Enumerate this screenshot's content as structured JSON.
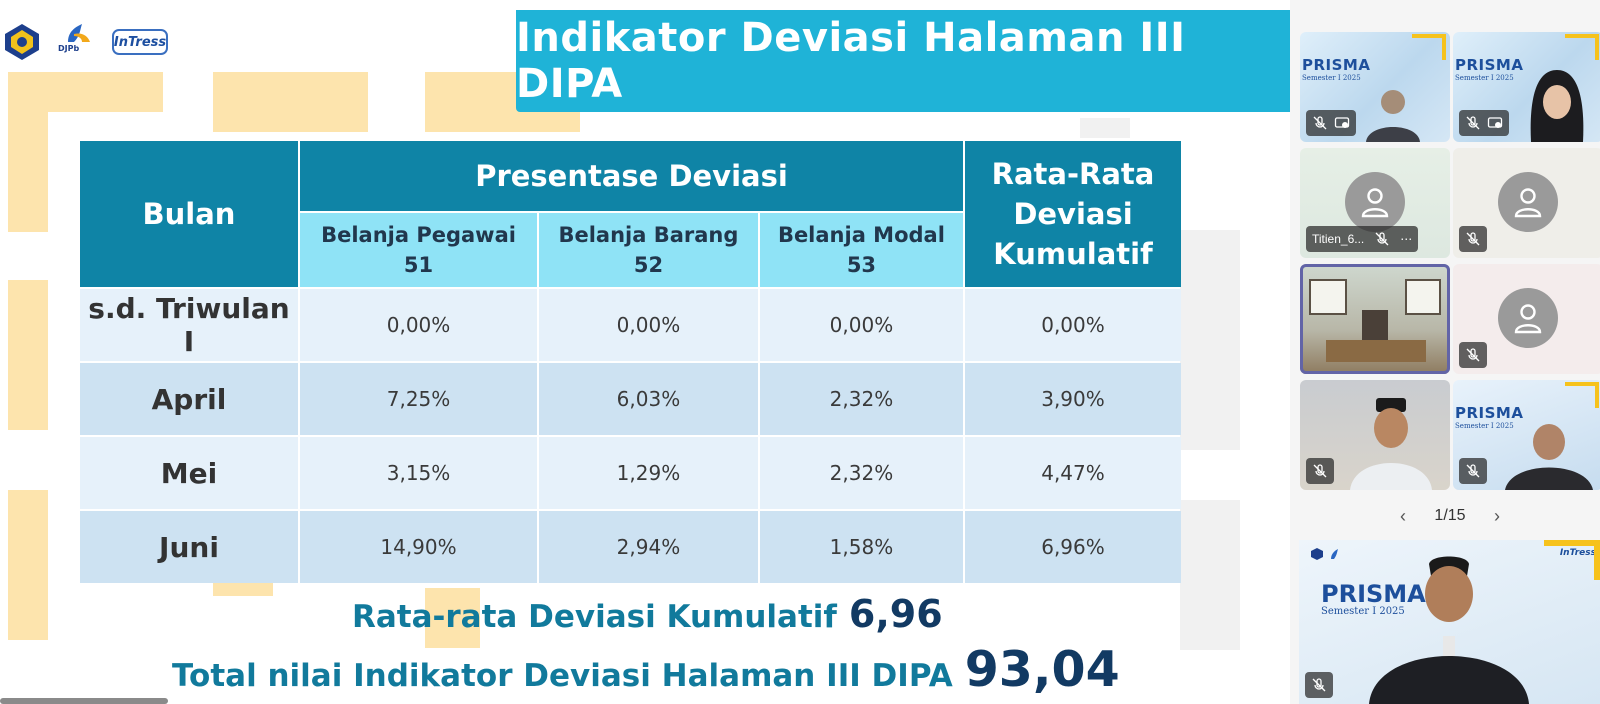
{
  "slide": {
    "title": "Indikator Deviasi Halaman III DIPA",
    "logos": {
      "djpb": "DJPb",
      "intress": "InTress"
    },
    "table": {
      "header": {
        "bulan": "Bulan",
        "presentase": "Presentase Deviasi",
        "rata_rata": "Rata-Rata Deviasi Kumulatif",
        "columns": [
          {
            "name": "Belanja Pegawai",
            "code": "51"
          },
          {
            "name": "Belanja Barang",
            "code": "52"
          },
          {
            "name": "Belanja Modal",
            "code": "53"
          }
        ]
      },
      "rows": [
        {
          "month": "s.d. Triwulan I",
          "pegawai": "0,00%",
          "barang": "0,00%",
          "modal": "0,00%",
          "rata": "0,00%"
        },
        {
          "month": "April",
          "pegawai": "7,25%",
          "barang": "6,03%",
          "modal": "2,32%",
          "rata": "3,90%"
        },
        {
          "month": "Mei",
          "pegawai": "3,15%",
          "barang": "1,29%",
          "modal": "2,32%",
          "rata": "4,47%"
        },
        {
          "month": "Juni",
          "pegawai": "14,90%",
          "barang": "2,94%",
          "modal": "1,58%",
          "rata": "6,96%"
        }
      ]
    },
    "summary": {
      "rata_label": "Rata-rata Deviasi Kumulatif",
      "rata_value": "6,96",
      "total_label": "Total nilai Indikator Deviasi Halaman III DIPA",
      "total_value": "93,04"
    }
  },
  "participants": {
    "tiles": [
      {
        "id": "p1",
        "banner": "PRISMA",
        "sub": "Semester I 2025"
      },
      {
        "id": "p2",
        "banner": "PRISMA",
        "sub": "Semester I 2025"
      },
      {
        "id": "p3",
        "name": "Titien_6..."
      },
      {
        "id": "p4"
      },
      {
        "id": "p5"
      },
      {
        "id": "p6"
      },
      {
        "id": "p7"
      },
      {
        "id": "p8",
        "banner": "PRISMA",
        "sub": "Semester I 2025"
      }
    ],
    "more_options": "⋯",
    "pager": {
      "text": "1/15",
      "prev": "‹",
      "next": "›"
    },
    "speaker": {
      "banner": "PRISMA",
      "sub": "Semester I 2025",
      "intress": "InTress"
    }
  },
  "colors": {
    "accent": "#1fb3d7",
    "table_dark": "#0f84a6",
    "table_light": "#8fe3f6",
    "selected": "#6264a7"
  }
}
